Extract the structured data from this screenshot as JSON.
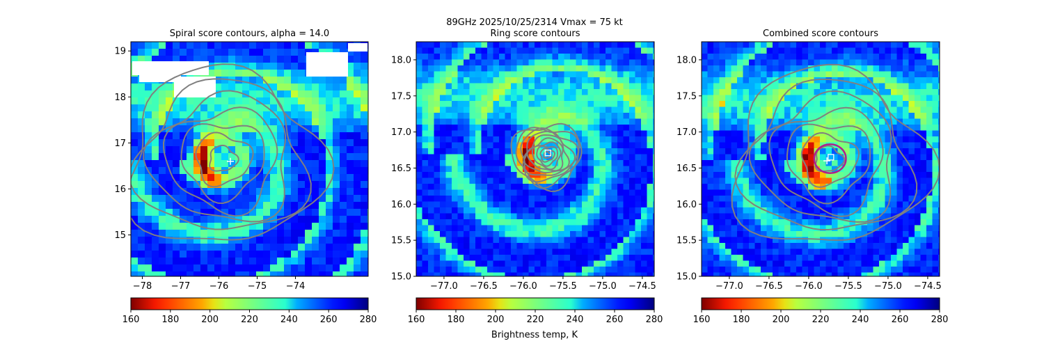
{
  "figure": {
    "suptitle_line1": "89GHz  2025/10/25/2314    Vmax = 75 kt",
    "colorbar_label": "Brightness temp, K",
    "colormap": "jet_r",
    "contour_color": "#808080"
  },
  "chart_data": [
    {
      "type": "heatmap",
      "title": "Spiral score contours, alpha = 14.0",
      "xlim": [
        -78.3,
        -72.1
      ],
      "ylim": [
        14.1,
        19.2
      ],
      "xticks": [
        -78,
        -77,
        -76,
        -75,
        -74
      ],
      "xtick_labels": [
        "−78",
        "−77",
        "−76",
        "−75",
        "−74"
      ],
      "yticks": [
        15,
        16,
        17,
        18,
        19
      ],
      "ytick_labels": [
        "15",
        "16",
        "17",
        "18",
        "19"
      ],
      "center": [
        -75.9,
        16.65
      ],
      "markers": [
        {
          "symbol": "plus",
          "x": -75.7,
          "y": 16.6,
          "color": "#ffffff"
        }
      ],
      "rings": [],
      "colorbar": {
        "vmin": 160,
        "vmax": 280,
        "ticks": [
          160,
          180,
          200,
          220,
          240,
          260,
          280
        ]
      }
    },
    {
      "type": "heatmap",
      "title": "Ring score contours",
      "xlim": [
        -77.35,
        -74.35
      ],
      "ylim": [
        15.0,
        18.25
      ],
      "xticks": [
        -77.0,
        -76.5,
        -76.0,
        -75.5,
        -75.0,
        -74.5
      ],
      "xtick_labels": [
        "−77.0",
        "−76.5",
        "−76.0",
        "−75.5",
        "−75.0",
        "−74.5"
      ],
      "yticks": [
        15.0,
        15.5,
        16.0,
        16.5,
        17.0,
        17.5,
        18.0
      ],
      "ytick_labels": [
        "15.0",
        "15.5",
        "16.0",
        "16.5",
        "17.0",
        "17.5",
        "18.0"
      ],
      "center": [
        -75.7,
        16.68
      ],
      "markers": [
        {
          "symbol": "square",
          "x": -75.69,
          "y": 16.71,
          "color": "#ffffff"
        }
      ],
      "rings": [],
      "colorbar": {
        "vmin": 160,
        "vmax": 280,
        "ticks": [
          160,
          180,
          200,
          220,
          240,
          260,
          280
        ]
      }
    },
    {
      "type": "heatmap",
      "title": "Combined score contours",
      "xlim": [
        -77.35,
        -74.35
      ],
      "ylim": [
        15.0,
        18.25
      ],
      "xticks": [
        -77.0,
        -76.5,
        -76.0,
        -75.5,
        -75.0,
        -74.5
      ],
      "xtick_labels": [
        "−77.0",
        "−76.5",
        "−76.0",
        "−75.5",
        "−75.0",
        "−74.5"
      ],
      "yticks": [
        15.0,
        15.5,
        16.0,
        16.5,
        17.0,
        17.5,
        18.0
      ],
      "ytick_labels": [
        "15.0",
        "15.5",
        "16.0",
        "16.5",
        "17.0",
        "17.5",
        "18.0"
      ],
      "center": [
        -75.75,
        16.62
      ],
      "markers": [
        {
          "symbol": "plus",
          "x": -75.77,
          "y": 16.6,
          "color": "#ffffff"
        },
        {
          "symbol": "square",
          "x": -75.72,
          "y": 16.65,
          "color": "#ffffff"
        }
      ],
      "rings": [
        {
          "x": -75.73,
          "y": 16.63,
          "r_deg": 0.2,
          "color": "#b0208c"
        }
      ],
      "colorbar": {
        "vmin": 160,
        "vmax": 280,
        "ticks": [
          160,
          180,
          200,
          220,
          240,
          260,
          280
        ]
      }
    }
  ]
}
